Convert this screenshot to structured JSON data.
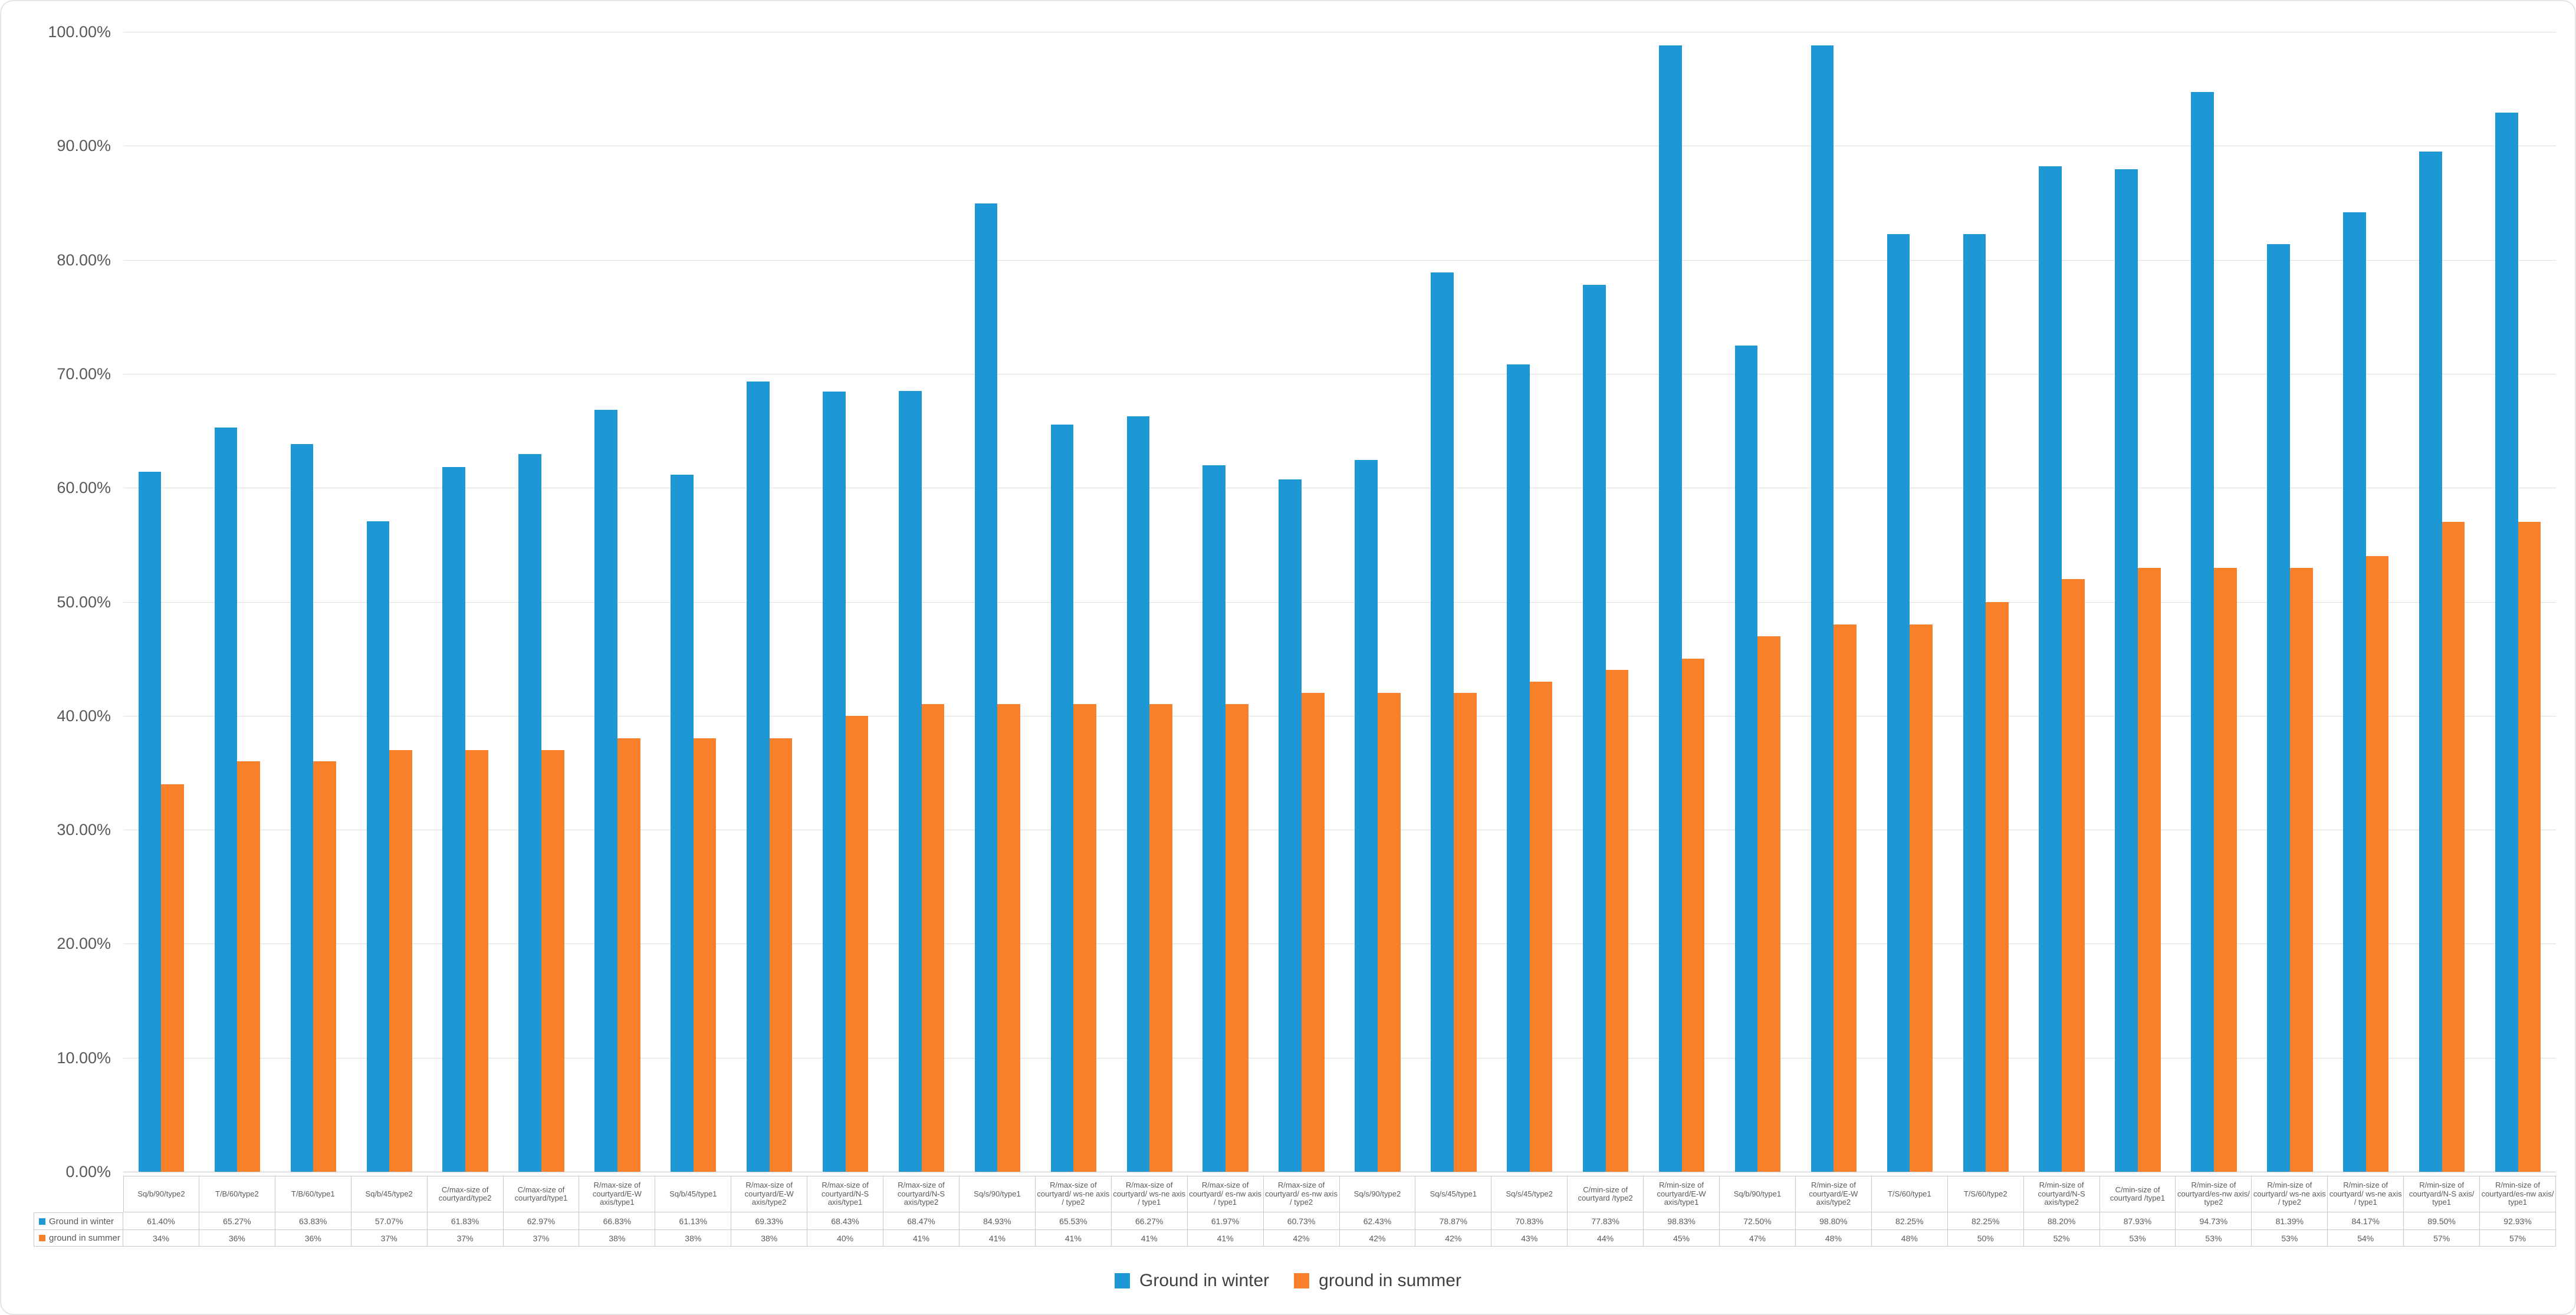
{
  "chart_data": {
    "type": "bar",
    "title": "",
    "xlabel": "",
    "ylabel": "",
    "ylim": [
      0,
      100
    ],
    "ytick_step": 10,
    "ytick_labels": [
      "0.00%",
      "10.00%",
      "20.00%",
      "30.00%",
      "40.00%",
      "50.00%",
      "60.00%",
      "70.00%",
      "80.00%",
      "90.00%",
      "100.00%"
    ],
    "grid": true,
    "legend_position": "bottom",
    "data_table_shown": true,
    "categories": [
      "Sq/b/90/type2",
      "T/B/60/type2",
      "T/B/60/type1",
      "Sq/b/45/type2",
      "C/max-size of courtyard/type2",
      "C/max-size of courtyard/type1",
      "R/max-size of courtyard/E-W axis/type1",
      "Sq/b/45/type1",
      "R/max-size of courtyard/E-W axis/type2",
      "R/max-size of courtyard/N-S axis/type1",
      "R/max-size of courtyard/N-S axis/type2",
      "Sq/s/90/type1",
      "R/max-size of courtyard/ ws-ne axis / type2",
      "R/max-size of courtyard/ ws-ne axis / type1",
      "R/max-size of courtyard/ es-nw axis / type1",
      "R/max-size of courtyard/ es-nw axis / type2",
      "Sq/s/90/type2",
      "Sq/s/45/type1",
      "Sq/s/45/type2",
      "C/min-size of courtyard /type2",
      "R/min-size of courtyard/E-W axis/type1",
      "Sq/b/90/type1",
      "R/min-size of courtyard/E-W axis/type2",
      "T/S/60/type1",
      "T/S/60/type2",
      "R/min-size of courtyard/N-S axis/type2",
      "C/min-size of courtyard /type1",
      "R/min-size of courtyard/es-nw axis/ type2",
      "R/min-size of courtyard/ ws-ne axis / type2",
      "R/min-size of courtyard/ ws-ne axis / type1",
      "R/min-size of courtyard/N-S axis/ type1",
      "R/min-size of courtyard/es-nw axis/ type1"
    ],
    "series": [
      {
        "name": "Ground in winter",
        "color": "#1e98d5",
        "values": [
          61.4,
          65.27,
          63.83,
          57.07,
          61.83,
          62.97,
          66.83,
          61.13,
          69.33,
          68.43,
          68.47,
          84.93,
          65.53,
          66.27,
          61.97,
          60.73,
          62.43,
          78.87,
          70.83,
          77.83,
          98.83,
          72.5,
          98.8,
          82.25,
          82.25,
          88.2,
          87.93,
          94.73,
          81.39,
          84.17,
          89.5,
          92.93
        ],
        "table_labels": [
          "61.40%",
          "65.27%",
          "63.83%",
          "57.07%",
          "61.83%",
          "62.97%",
          "66.83%",
          "61.13%",
          "69.33%",
          "68.43%",
          "68.47%",
          "84.93%",
          "65.53%",
          "66.27%",
          "61.97%",
          "60.73%",
          "62.43%",
          "78.87%",
          "70.83%",
          "77.83%",
          "98.83%",
          "72.50%",
          "98.80%",
          "82.25%",
          "82.25%",
          "88.20%",
          "87.93%",
          "94.73%",
          "81.39%",
          "84.17%",
          "89.50%",
          "92.93%"
        ]
      },
      {
        "name": "ground in summer",
        "color": "#f9802b",
        "values": [
          34,
          36,
          36,
          37,
          37,
          37,
          38,
          38,
          38,
          40,
          41,
          41,
          41,
          41,
          41,
          42,
          42,
          42,
          43,
          44,
          45,
          47,
          48,
          48,
          50,
          52,
          53,
          53,
          53,
          54,
          57,
          57
        ],
        "table_labels": [
          "34%",
          "36%",
          "36%",
          "37%",
          "37%",
          "37%",
          "38%",
          "38%",
          "38%",
          "40%",
          "41%",
          "41%",
          "41%",
          "41%",
          "41%",
          "42%",
          "42%",
          "42%",
          "43%",
          "44%",
          "45%",
          "47%",
          "48%",
          "48%",
          "50%",
          "52%",
          "53%",
          "53%",
          "53%",
          "54%",
          "57%",
          "57%"
        ]
      }
    ],
    "colors": {
      "gridline": "#dedede",
      "axis_baseline": "#c8c8c8",
      "table_border": "#c8c8c8",
      "axis_text": "#595959",
      "legend_text": "#404040"
    }
  }
}
